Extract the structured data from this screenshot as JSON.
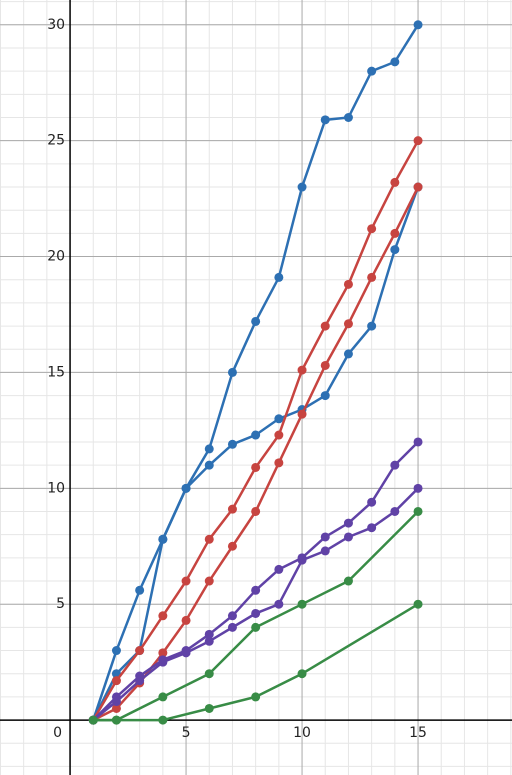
{
  "chart_data": {
    "type": "line",
    "xlim": [
      -3.02,
      19.05
    ],
    "ylim": [
      -2.37,
      31.07
    ],
    "xticks": [
      0,
      5,
      10,
      15
    ],
    "yticks": [
      5,
      10,
      15,
      20,
      25,
      30
    ],
    "grid": true,
    "series": [
      {
        "color": "#2d70b3",
        "x": [
          1,
          2,
          3,
          4,
          5,
          6,
          7,
          8,
          9,
          10,
          11,
          12,
          13,
          14,
          15
        ],
        "values": [
          0,
          3,
          5.6,
          7.8,
          10,
          11.7,
          15,
          17.2,
          19.1,
          23,
          25.9,
          26,
          28,
          28.4,
          30
        ]
      },
      {
        "color": "#2d70b3",
        "x": [
          1,
          2,
          3,
          4,
          5,
          6,
          7,
          8,
          9,
          10,
          11,
          12,
          13,
          14,
          15
        ],
        "values": [
          0,
          2,
          3,
          7.8,
          10,
          11,
          11.9,
          12.3,
          13,
          13.4,
          14,
          15.8,
          17,
          20.3,
          23
        ]
      },
      {
        "color": "#c74440",
        "x": [
          1,
          2,
          3,
          4,
          5,
          6,
          7,
          8,
          9,
          10,
          11,
          12,
          13,
          14,
          15
        ],
        "values": [
          0,
          1.7,
          3,
          4.5,
          6,
          7.8,
          9.1,
          10.9,
          12.3,
          15.1,
          17,
          18.8,
          21.2,
          23.2,
          25
        ]
      },
      {
        "color": "#c74440",
        "x": [
          1,
          2,
          3,
          4,
          5,
          6,
          7,
          8,
          9,
          10,
          11,
          12,
          13,
          14,
          15
        ],
        "values": [
          0,
          0.5,
          1.6,
          2.9,
          4.3,
          6,
          7.5,
          9,
          11.1,
          13.2,
          15.3,
          17.1,
          19.1,
          21,
          23
        ]
      },
      {
        "color": "#6042a6",
        "x": [
          1,
          2,
          3,
          4,
          5,
          6,
          7,
          8,
          9,
          10,
          11,
          12,
          13,
          14,
          15
        ],
        "values": [
          0,
          1,
          1.9,
          2.6,
          3,
          3.7,
          4.5,
          5.6,
          6.5,
          7,
          7.9,
          8.5,
          9.4,
          11,
          12
        ]
      },
      {
        "color": "#6042a6",
        "x": [
          1,
          2,
          3,
          4,
          5,
          6,
          7,
          8,
          9,
          10,
          11,
          12,
          13,
          14,
          15
        ],
        "values": [
          0,
          0.8,
          1.7,
          2.5,
          2.9,
          3.4,
          4,
          4.6,
          5,
          6.9,
          7.3,
          7.9,
          8.3,
          9,
          10
        ]
      },
      {
        "color": "#388c46",
        "x": [
          1,
          2,
          4,
          6,
          8,
          10,
          12,
          15
        ],
        "values": [
          0,
          0,
          1,
          2,
          4,
          5,
          6,
          9
        ]
      },
      {
        "color": "#388c46",
        "x": [
          1,
          2,
          4,
          6,
          8,
          10,
          15
        ],
        "values": [
          0,
          0,
          0,
          0.5,
          1,
          2,
          5
        ]
      }
    ]
  }
}
